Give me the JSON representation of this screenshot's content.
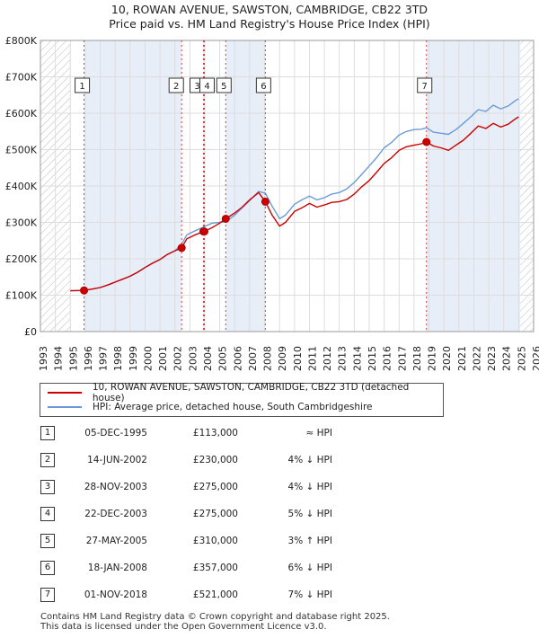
{
  "title_line1": "10, ROWAN AVENUE, SAWSTON, CAMBRIDGE, CB22 3TD",
  "title_line2": "Price paid vs. HM Land Registry's House Price Index (HPI)",
  "chart_data": {
    "type": "line",
    "x_ticks": [
      "1993",
      "1994",
      "1995",
      "1996",
      "1997",
      "1998",
      "1999",
      "2000",
      "2001",
      "2002",
      "2003",
      "2004",
      "2005",
      "2006",
      "2007",
      "2008",
      "2009",
      "2010",
      "2011",
      "2012",
      "2013",
      "2014",
      "2015",
      "2016",
      "2017",
      "2018",
      "2019",
      "2020",
      "2021",
      "2022",
      "2023",
      "2024",
      "2025",
      "2026"
    ],
    "y_ticks": [
      "£0",
      "£100K",
      "£200K",
      "£300K",
      "£400K",
      "£500K",
      "£600K",
      "£700K",
      "£800K"
    ],
    "xlim": [
      1993,
      2026
    ],
    "ylim": [
      0,
      800000
    ],
    "grid": true,
    "hatched_regions": [
      [
        1993,
        1995.0
      ],
      [
        2025.1,
        2026
      ]
    ],
    "shaded_regions": [
      [
        1995.92,
        2002.45
      ],
      [
        2003.91,
        2003.97
      ],
      [
        2005.4,
        2008.05
      ],
      [
        2018.83,
        2025.1
      ]
    ],
    "series": [
      {
        "name": "10, ROWAN AVENUE, SAWSTON, CAMBRIDGE, CB22 3TD (detached house)",
        "color": "#cc0000",
        "x": [
          1995.0,
          1995.92,
          1996.5,
          1997.0,
          1997.5,
          1998.0,
          1998.5,
          1999.0,
          1999.5,
          2000.0,
          2000.5,
          2001.0,
          2001.5,
          2002.0,
          2002.45,
          2002.8,
          2003.3,
          2003.91,
          2003.97,
          2004.5,
          2005.0,
          2005.4,
          2006.0,
          2006.5,
          2007.0,
          2007.6,
          2008.05,
          2008.5,
          2009.0,
          2009.4,
          2010.0,
          2010.5,
          2011.0,
          2011.5,
          2012.0,
          2012.5,
          2013.0,
          2013.5,
          2014.0,
          2014.5,
          2015.0,
          2015.5,
          2016.0,
          2016.5,
          2017.0,
          2017.5,
          2018.0,
          2018.5,
          2018.83,
          2019.3,
          2019.8,
          2020.3,
          2020.8,
          2021.3,
          2021.8,
          2022.3,
          2022.8,
          2023.3,
          2023.8,
          2024.3,
          2024.8,
          2025.0
        ],
        "y": [
          112000,
          113000,
          117000,
          121000,
          128000,
          136000,
          144000,
          152000,
          163000,
          176000,
          188000,
          198000,
          212000,
          222000,
          230000,
          255000,
          265000,
          275000,
          275000,
          286000,
          298000,
          310000,
          326000,
          342000,
          362000,
          382000,
          357000,
          320000,
          290000,
          300000,
          330000,
          340000,
          352000,
          342000,
          348000,
          355000,
          357000,
          363000,
          378000,
          398000,
          415000,
          438000,
          462000,
          478000,
          498000,
          508000,
          512000,
          516000,
          521000,
          510000,
          505000,
          498000,
          512000,
          526000,
          545000,
          565000,
          558000,
          572000,
          562000,
          570000,
          585000,
          590000
        ]
      },
      {
        "name": "HPI: Average price, detached house, South Cambridgeshire",
        "color": "#6a9bd8",
        "x": [
          1995.0,
          1995.92,
          1996.5,
          1997.0,
          1997.5,
          1998.0,
          1998.5,
          1999.0,
          1999.5,
          2000.0,
          2000.5,
          2001.0,
          2001.5,
          2002.0,
          2002.45,
          2002.8,
          2003.3,
          2003.91,
          2003.97,
          2004.5,
          2005.0,
          2005.4,
          2006.0,
          2006.5,
          2007.0,
          2007.6,
          2008.05,
          2008.5,
          2009.0,
          2009.4,
          2010.0,
          2010.5,
          2011.0,
          2011.5,
          2012.0,
          2012.5,
          2013.0,
          2013.5,
          2014.0,
          2014.5,
          2015.0,
          2015.5,
          2016.0,
          2016.5,
          2017.0,
          2017.5,
          2018.0,
          2018.5,
          2018.83,
          2019.3,
          2019.8,
          2020.3,
          2020.8,
          2021.3,
          2021.8,
          2022.3,
          2022.8,
          2023.3,
          2023.8,
          2024.3,
          2024.8,
          2025.0
        ],
        "y": [
          112000,
          113000,
          117000,
          121000,
          128000,
          136000,
          144000,
          152000,
          163000,
          176000,
          188000,
          198000,
          212000,
          222000,
          240000,
          266000,
          276000,
          287000,
          289000,
          298000,
          300000,
          302000,
          320000,
          340000,
          360000,
          385000,
          380000,
          345000,
          310000,
          320000,
          350000,
          362000,
          372000,
          362000,
          368000,
          378000,
          382000,
          392000,
          410000,
          432000,
          455000,
          478000,
          505000,
          520000,
          540000,
          550000,
          555000,
          556000,
          560000,
          548000,
          545000,
          542000,
          555000,
          572000,
          590000,
          610000,
          605000,
          622000,
          612000,
          620000,
          635000,
          640000
        ]
      }
    ],
    "sales": [
      {
        "label": "1",
        "x": 1995.92,
        "y": 113000
      },
      {
        "label": "2",
        "x": 2002.45,
        "y": 230000
      },
      {
        "label": "3",
        "x": 2003.91,
        "y": 275000
      },
      {
        "label": "4",
        "x": 2003.97,
        "y": 275000
      },
      {
        "label": "5",
        "x": 2005.4,
        "y": 310000
      },
      {
        "label": "6",
        "x": 2008.05,
        "y": 357000
      },
      {
        "label": "7",
        "x": 2018.83,
        "y": 521000
      }
    ],
    "markers": [
      {
        "label": "1",
        "x": 1995.92
      },
      {
        "label": "2",
        "x": 2002.45
      },
      {
        "label": "3",
        "x": 2003.91
      },
      {
        "label": "4",
        "x": 2003.97
      },
      {
        "label": "5",
        "x": 2005.4
      },
      {
        "label": "6",
        "x": 2008.05
      },
      {
        "label": "7",
        "x": 2018.83
      }
    ]
  },
  "legend": {
    "property": "10, ROWAN AVENUE, SAWSTON, CAMBRIDGE, CB22 3TD (detached house)",
    "hpi": "HPI: Average price, detached house, South Cambridgeshire"
  },
  "sales_table": [
    {
      "num": "1",
      "date": "05-DEC-1995",
      "price": "£113,000",
      "hpi": "≈ HPI"
    },
    {
      "num": "2",
      "date": "14-JUN-2002",
      "price": "£230,000",
      "hpi": "4% ↓ HPI"
    },
    {
      "num": "3",
      "date": "28-NOV-2003",
      "price": "£275,000",
      "hpi": "4% ↓ HPI"
    },
    {
      "num": "4",
      "date": "22-DEC-2003",
      "price": "£275,000",
      "hpi": "5% ↓ HPI"
    },
    {
      "num": "5",
      "date": "27-MAY-2005",
      "price": "£310,000",
      "hpi": "3% ↑ HPI"
    },
    {
      "num": "6",
      "date": "18-JAN-2008",
      "price": "£357,000",
      "hpi": "6% ↓ HPI"
    },
    {
      "num": "7",
      "date": "01-NOV-2018",
      "price": "£521,000",
      "hpi": "7% ↓ HPI"
    }
  ],
  "footer_line1": "Contains HM Land Registry data © Crown copyright and database right 2025.",
  "footer_line2": "This data is licensed under the Open Government Licence v3.0."
}
